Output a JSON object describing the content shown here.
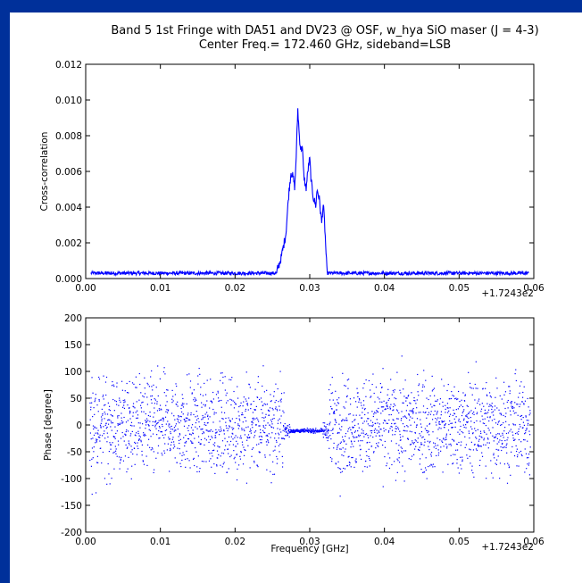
{
  "figure": {
    "title_line1": "Band 5 1st Fringe with DA51 and DV23 @ OSF, w_hya SiO maser (J = 4-3)",
    "title_line2": "Center Freq.= 172.460 GHz, sideband=LSB",
    "background": "#00309a",
    "series_color": "#0000ff"
  },
  "chart_data": [
    {
      "type": "line",
      "ylabel": "Cross-correlation",
      "xlabel": "",
      "x_offset_label": "+1.7243e2",
      "xlim": [
        0.0,
        0.06
      ],
      "ylim": [
        0.0,
        0.012
      ],
      "x_ticks": [
        "0.00",
        "0.01",
        "0.02",
        "0.03",
        "0.04",
        "0.05",
        "0.06"
      ],
      "y_ticks": [
        "0.000",
        "0.002",
        "0.004",
        "0.006",
        "0.008",
        "0.010",
        "0.012"
      ],
      "baseline": 0.0003,
      "noise_amplitude": 0.0002,
      "series": [
        {
          "x": [
            0.0256,
            0.0262,
            0.0268,
            0.0272,
            0.0275,
            0.0278,
            0.028,
            0.0282,
            0.0284,
            0.0286,
            0.0288,
            0.029,
            0.0292,
            0.0295,
            0.0298,
            0.03,
            0.0302,
            0.0305,
            0.0308,
            0.031,
            0.0313,
            0.0316,
            0.0318,
            0.032,
            0.0323
          ],
          "y": [
            0.0004,
            0.0012,
            0.0025,
            0.0048,
            0.006,
            0.0056,
            0.0051,
            0.007,
            0.0095,
            0.008,
            0.0072,
            0.0074,
            0.0058,
            0.005,
            0.0062,
            0.0067,
            0.0054,
            0.0045,
            0.0041,
            0.005,
            0.0044,
            0.0031,
            0.0042,
            0.003,
            0.0004
          ]
        }
      ]
    },
    {
      "type": "scatter",
      "ylabel": "Phase [degree]",
      "xlabel": "Frequency [GHz]",
      "x_offset_label": "+1.7243e2",
      "xlim": [
        0.0,
        0.06
      ],
      "ylim": [
        -200,
        200
      ],
      "x_ticks": [
        "0.00",
        "0.01",
        "0.02",
        "0.03",
        "0.04",
        "0.05",
        "0.06"
      ],
      "y_ticks": [
        "-200",
        "-150",
        "-100",
        "-50",
        "0",
        "50",
        "100",
        "150",
        "200"
      ],
      "noise_spread_deg": 150,
      "flat_band": {
        "x": [
          0.0265,
          0.0325
        ],
        "y": -10,
        "spread": 6
      }
    }
  ]
}
